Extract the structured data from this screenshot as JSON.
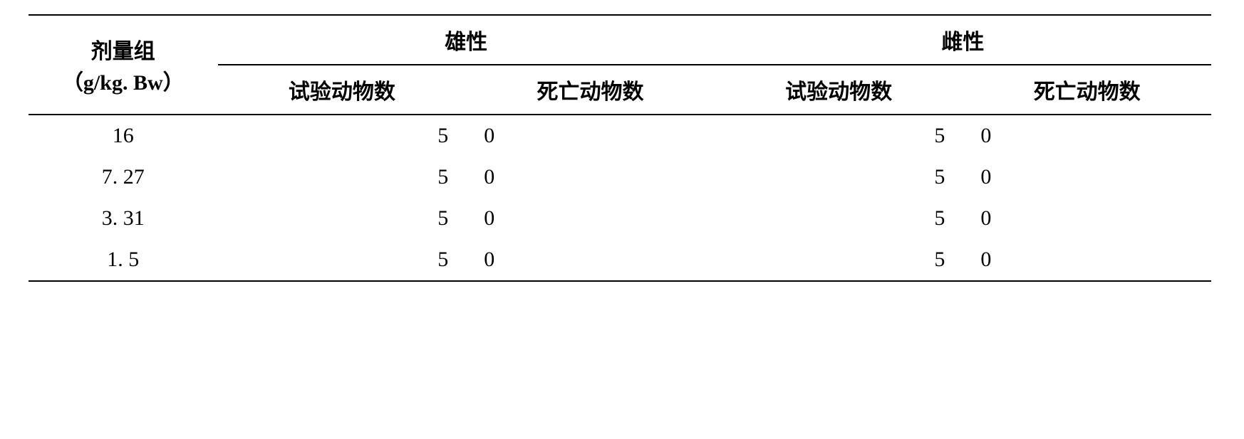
{
  "table": {
    "columns": {
      "dose_group_line1": "剂量组",
      "dose_group_line2": "（g/kg. Bw）",
      "male": "雄性",
      "female": "雌性",
      "test_animals": "试验动物数",
      "dead_animals": "死亡动物数"
    },
    "rows": [
      {
        "dose": "16",
        "male_test": "5",
        "male_dead": "0",
        "female_test": "5",
        "female_dead": "0"
      },
      {
        "dose": "7. 27",
        "male_test": "5",
        "male_dead": "0",
        "female_test": "5",
        "female_dead": "0"
      },
      {
        "dose": "3. 31",
        "male_test": "5",
        "male_dead": "0",
        "female_test": "5",
        "female_dead": "0"
      },
      {
        "dose": "1. 5",
        "male_test": "5",
        "male_dead": "0",
        "female_test": "5",
        "female_dead": "0"
      }
    ],
    "style": {
      "border_color": "#000000",
      "background_color": "#ffffff",
      "text_color": "#000000",
      "header_fontsize": 30,
      "cell_fontsize": 30,
      "font_family": "SimSun"
    }
  }
}
